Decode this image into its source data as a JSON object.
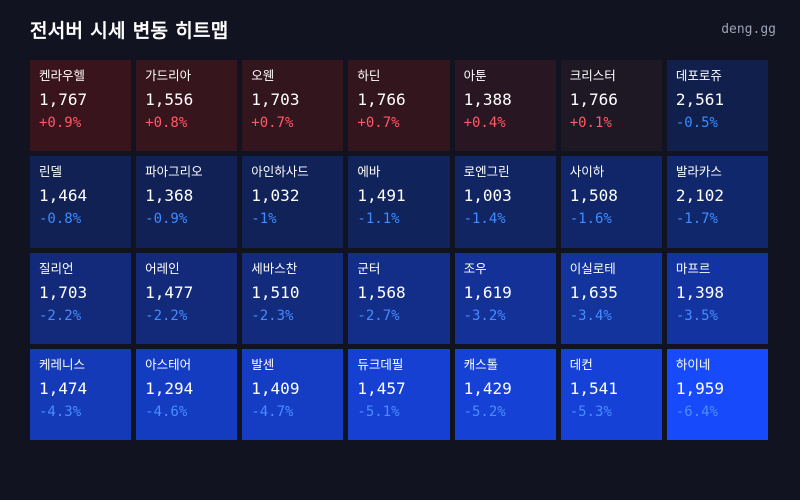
{
  "header": {
    "title": "전서버 시세 변동 히트맵",
    "brand": "deng.gg"
  },
  "colors": {
    "background": "#111320",
    "positive_text": "#ff5a66",
    "negative_text": "#3b8cff"
  },
  "chart_data": {
    "type": "heatmap",
    "title": "전서버 시세 변동 히트맵",
    "columns": 7,
    "cells": [
      {
        "name": "켄라우헬",
        "price": "1,767",
        "change": "+0.9%",
        "value": 0.9
      },
      {
        "name": "가드리아",
        "price": "1,556",
        "change": "+0.8%",
        "value": 0.8
      },
      {
        "name": "오웬",
        "price": "1,703",
        "change": "+0.7%",
        "value": 0.7
      },
      {
        "name": "하딘",
        "price": "1,766",
        "change": "+0.7%",
        "value": 0.7
      },
      {
        "name": "아툰",
        "price": "1,388",
        "change": "+0.4%",
        "value": 0.4
      },
      {
        "name": "크리스터",
        "price": "1,766",
        "change": "+0.1%",
        "value": 0.1
      },
      {
        "name": "데포로쥬",
        "price": "2,561",
        "change": "-0.5%",
        "value": -0.5
      },
      {
        "name": "린델",
        "price": "1,464",
        "change": "-0.8%",
        "value": -0.8
      },
      {
        "name": "파아그리오",
        "price": "1,368",
        "change": "-0.9%",
        "value": -0.9
      },
      {
        "name": "아인하사드",
        "price": "1,032",
        "change": "-1%",
        "value": -1.0
      },
      {
        "name": "에바",
        "price": "1,491",
        "change": "-1.1%",
        "value": -1.1
      },
      {
        "name": "로엔그린",
        "price": "1,003",
        "change": "-1.4%",
        "value": -1.4
      },
      {
        "name": "사이하",
        "price": "1,508",
        "change": "-1.6%",
        "value": -1.6
      },
      {
        "name": "발라카스",
        "price": "2,102",
        "change": "-1.7%",
        "value": -1.7
      },
      {
        "name": "질리언",
        "price": "1,703",
        "change": "-2.2%",
        "value": -2.2
      },
      {
        "name": "어레인",
        "price": "1,477",
        "change": "-2.2%",
        "value": -2.2
      },
      {
        "name": "세바스찬",
        "price": "1,510",
        "change": "-2.3%",
        "value": -2.3
      },
      {
        "name": "군터",
        "price": "1,568",
        "change": "-2.7%",
        "value": -2.7
      },
      {
        "name": "조우",
        "price": "1,619",
        "change": "-3.2%",
        "value": -3.2
      },
      {
        "name": "이실로테",
        "price": "1,635",
        "change": "-3.4%",
        "value": -3.4
      },
      {
        "name": "마프르",
        "price": "1,398",
        "change": "-3.5%",
        "value": -3.5
      },
      {
        "name": "케레니스",
        "price": "1,474",
        "change": "-4.3%",
        "value": -4.3
      },
      {
        "name": "아스테어",
        "price": "1,294",
        "change": "-4.6%",
        "value": -4.6
      },
      {
        "name": "발센",
        "price": "1,409",
        "change": "-4.7%",
        "value": -4.7
      },
      {
        "name": "듀크데필",
        "price": "1,457",
        "change": "-5.1%",
        "value": -5.1
      },
      {
        "name": "캐스톨",
        "price": "1,429",
        "change": "-5.2%",
        "value": -5.2
      },
      {
        "name": "데컨",
        "price": "1,541",
        "change": "-5.3%",
        "value": -5.3
      },
      {
        "name": "하이네",
        "price": "1,959",
        "change": "-6.4%",
        "value": -6.4
      }
    ]
  }
}
